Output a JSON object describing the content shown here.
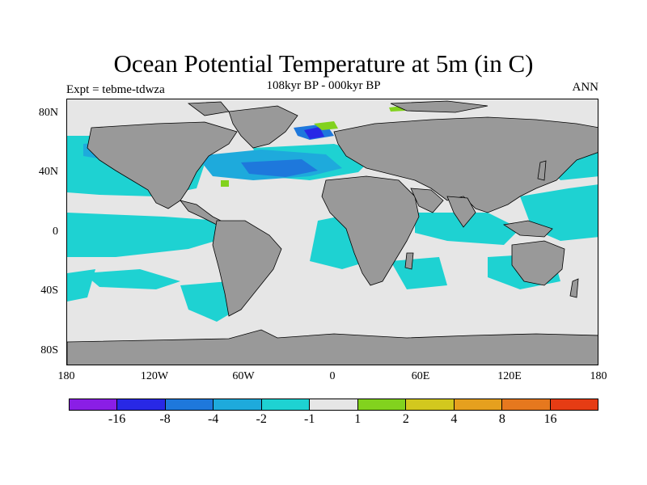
{
  "title": "Ocean Potential Temperature at 5m (in C)",
  "subtitle": "108kyr BP - 000kyr BP",
  "left_label": "Expt = tebme-tdwza",
  "right_label": "ANN",
  "lat_ticks": [
    "80N",
    "40N",
    "0",
    "40S",
    "80S"
  ],
  "lon_ticks": [
    "180",
    "120W",
    "60W",
    "0",
    "60E",
    "120E",
    "180"
  ],
  "colorbar": {
    "colors": [
      "#8a1ee6",
      "#2828e6",
      "#1e78dc",
      "#1eaadc",
      "#1ed2d2",
      "#e6e6e6",
      "#82d21e",
      "#d2c81e",
      "#e6a01e",
      "#e6781e",
      "#e63c14"
    ],
    "labels": [
      "-16",
      "-8",
      "-4",
      "-2",
      "-1",
      "1",
      "2",
      "4",
      "8",
      "16"
    ]
  },
  "map_colors": {
    "land": "#999999",
    "ocean_neutral": "#e6e6e6",
    "cool_1": "#1ed2d2",
    "cool_2": "#1eaadc",
    "cool_3": "#1e78dc",
    "cool_4": "#2828e6",
    "warm_1": "#82d21e"
  }
}
